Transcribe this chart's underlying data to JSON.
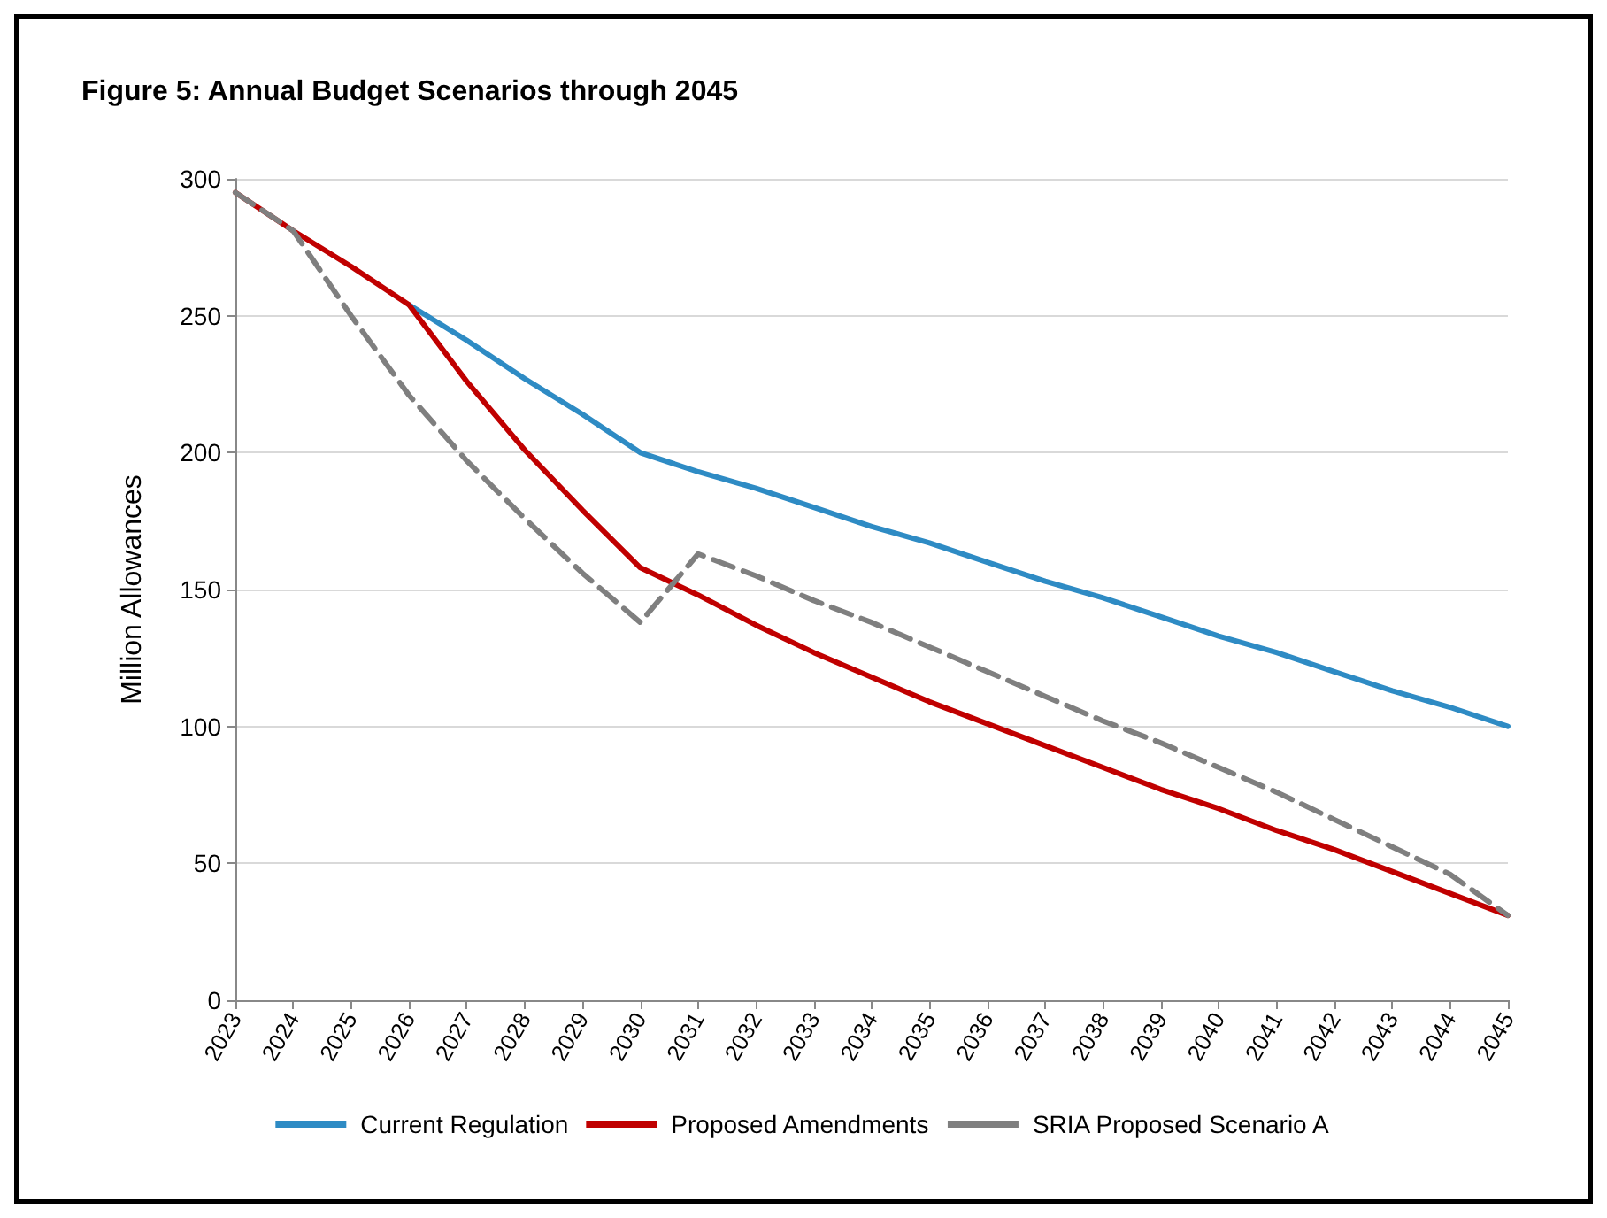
{
  "chart_data": {
    "type": "line",
    "title": "Figure 5: Annual Budget Scenarios through 2045",
    "ylabel": "Million Allowances",
    "categories": [
      "2023",
      "2024",
      "2025",
      "2026",
      "2027",
      "2028",
      "2029",
      "2030",
      "2031",
      "2032",
      "2033",
      "2034",
      "2035",
      "2036",
      "2037",
      "2038",
      "2039",
      "2040",
      "2041",
      "2042",
      "2043",
      "2044",
      "2045"
    ],
    "series": [
      {
        "name": "Current Regulation",
        "color": "#2e8bc4",
        "line_style": "solid",
        "values": [
          null,
          null,
          null,
          254,
          241,
          227,
          214,
          200,
          193,
          187,
          180,
          173,
          167,
          160,
          153,
          147,
          140,
          133,
          127,
          120,
          113,
          107,
          100
        ]
      },
      {
        "name": "Proposed Amendments",
        "color": "#c00000",
        "line_style": "solid",
        "values": [
          295,
          281,
          268,
          254,
          226,
          201,
          179,
          158,
          148,
          137,
          127,
          118,
          109,
          101,
          93,
          85,
          77,
          70,
          62,
          55,
          47,
          39,
          31
        ]
      },
      {
        "name": "SRIA Proposed Scenario A",
        "color": "#7f7f7f",
        "line_style": "dashed",
        "values": [
          295,
          281,
          250,
          221,
          197,
          176,
          156,
          138,
          163,
          155,
          146,
          138,
          129,
          120,
          111,
          102,
          94,
          85,
          76,
          66,
          56,
          46,
          31
        ]
      }
    ],
    "ylim": [
      0,
      300
    ],
    "yticks": [
      0,
      50,
      100,
      150,
      200,
      250,
      300
    ],
    "grid": "y",
    "legend": "bottom",
    "marker": "none"
  }
}
